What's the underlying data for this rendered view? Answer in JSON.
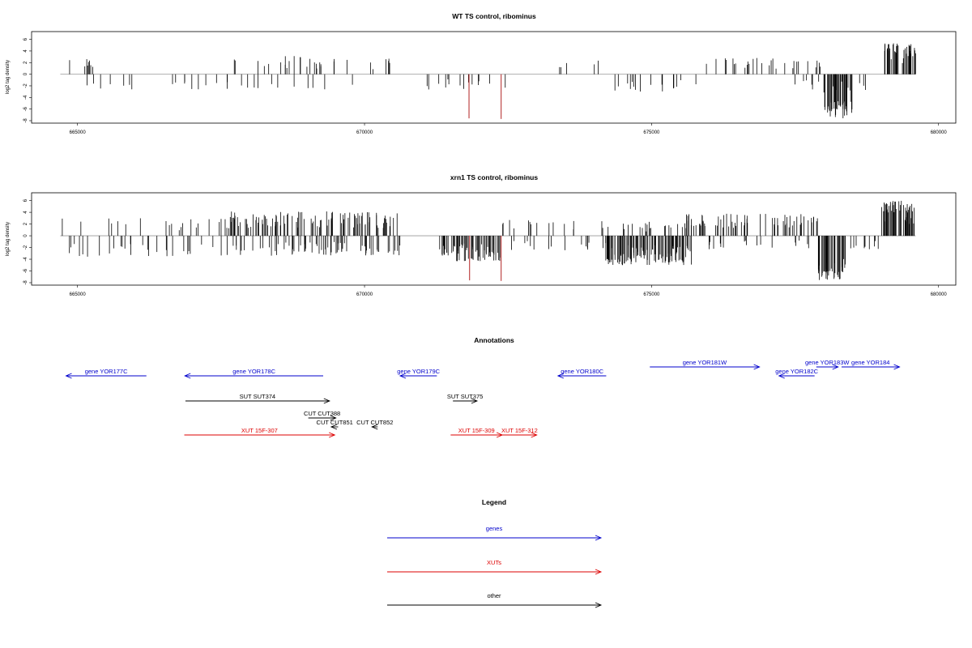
{
  "chart_data": [
    {
      "type": "bar",
      "title": "WT TS control, ribominus",
      "ylabel": "log2 tag density",
      "xlabel": "",
      "xlim": [
        664200,
        680300
      ],
      "ylim": [
        -8,
        7
      ],
      "yticks": [
        "6",
        "4",
        "2",
        "0",
        "-2",
        "-4",
        "-6",
        "-8"
      ],
      "xticks": [
        "665000",
        "670000",
        "675000",
        "680000"
      ],
      "bar_color": "#000000",
      "highlight_color": "#b22222",
      "highlight_bars": [
        {
          "x": 671820,
          "y": -7.6
        },
        {
          "x": 672380,
          "y": -7.7
        }
      ],
      "regions": [
        {
          "x_start": 664750,
          "x_end": 665400,
          "sign": 1,
          "max": 2.6,
          "density": 8
        },
        {
          "x_start": 664900,
          "x_end": 667300,
          "sign": -1,
          "max": 2.8,
          "density": 14
        },
        {
          "x_start": 667700,
          "x_end": 669900,
          "sign": 1,
          "max": 3.2,
          "density": 24
        },
        {
          "x_start": 667400,
          "x_end": 669800,
          "sign": -1,
          "max": 2.6,
          "density": 14
        },
        {
          "x_start": 669900,
          "x_end": 670700,
          "sign": 1,
          "max": 2.8,
          "density": 6
        },
        {
          "x_start": 670900,
          "x_end": 672500,
          "sign": -1,
          "max": 2.8,
          "density": 14
        },
        {
          "x_start": 673300,
          "x_end": 674300,
          "sign": 1,
          "max": 2.8,
          "density": 5
        },
        {
          "x_start": 674200,
          "x_end": 675900,
          "sign": -1,
          "max": 3.0,
          "density": 16
        },
        {
          "x_start": 675900,
          "x_end": 677200,
          "sign": 1,
          "max": 2.8,
          "density": 18
        },
        {
          "x_start": 677300,
          "x_end": 678100,
          "sign": 1,
          "max": 2.4,
          "density": 10
        },
        {
          "x_start": 677400,
          "x_end": 679000,
          "sign": -1,
          "max": 3.0,
          "density": 14
        },
        {
          "x_start": 678000,
          "x_end": 678500,
          "sign": -1,
          "max": 7.6,
          "density": 40
        },
        {
          "x_start": 679050,
          "x_end": 679600,
          "sign": 1,
          "max": 5.4,
          "density": 40
        }
      ]
    },
    {
      "type": "bar",
      "title": "xrn1 TS control, ribominus",
      "ylabel": "log2 tag density",
      "xlabel": "",
      "xlim": [
        664200,
        680300
      ],
      "ylim": [
        -8,
        7
      ],
      "yticks": [
        "6",
        "4",
        "2",
        "0",
        "-2",
        "-4",
        "-6",
        "-8"
      ],
      "xticks": [
        "665000",
        "670000",
        "675000",
        "680000"
      ],
      "bar_color": "#000000",
      "highlight_color": "#b22222",
      "highlight_bars": [
        {
          "x": 671830,
          "y": -7.6
        },
        {
          "x": 672380,
          "y": -7.7
        }
      ],
      "regions": [
        {
          "x_start": 664700,
          "x_end": 667600,
          "sign": 1,
          "max": 3.0,
          "density": 20
        },
        {
          "x_start": 664700,
          "x_end": 667600,
          "sign": -1,
          "max": 3.6,
          "density": 28
        },
        {
          "x_start": 667600,
          "x_end": 670700,
          "sign": 1,
          "max": 4.2,
          "density": 110
        },
        {
          "x_start": 667600,
          "x_end": 670700,
          "sign": -1,
          "max": 3.4,
          "density": 70
        },
        {
          "x_start": 671300,
          "x_end": 672400,
          "sign": -1,
          "max": 4.4,
          "density": 70
        },
        {
          "x_start": 672400,
          "x_end": 674300,
          "sign": 1,
          "max": 2.8,
          "density": 16
        },
        {
          "x_start": 672500,
          "x_end": 674300,
          "sign": -1,
          "max": 2.6,
          "density": 16
        },
        {
          "x_start": 674200,
          "x_end": 675700,
          "sign": -1,
          "max": 5.0,
          "density": 110
        },
        {
          "x_start": 674500,
          "x_end": 675700,
          "sign": 1,
          "max": 2.4,
          "density": 20
        },
        {
          "x_start": 675600,
          "x_end": 677900,
          "sign": 1,
          "max": 3.8,
          "density": 70
        },
        {
          "x_start": 676000,
          "x_end": 677800,
          "sign": -1,
          "max": 2.4,
          "density": 18
        },
        {
          "x_start": 677900,
          "x_end": 678400,
          "sign": -1,
          "max": 7.6,
          "density": 40
        },
        {
          "x_start": 678400,
          "x_end": 679000,
          "sign": -1,
          "max": 2.5,
          "density": 10
        },
        {
          "x_start": 679000,
          "x_end": 679600,
          "sign": 1,
          "max": 6.2,
          "density": 50
        }
      ]
    }
  ],
  "annotations": {
    "title": "Annotations",
    "xlim": [
      664200,
      680300
    ],
    "features": [
      {
        "label": "gene YOR177C",
        "x_start": 664800,
        "x_end": 666200,
        "strand": "-",
        "type": "gene",
        "row": 1
      },
      {
        "label": "gene YOR178C",
        "x_start": 666870,
        "x_end": 669280,
        "strand": "-",
        "type": "gene",
        "row": 1
      },
      {
        "label": "gene YOR179C",
        "x_start": 670620,
        "x_end": 671260,
        "strand": "-",
        "type": "gene",
        "row": 1
      },
      {
        "label": "gene YOR180C",
        "x_start": 673370,
        "x_end": 674210,
        "strand": "-",
        "type": "gene",
        "row": 1
      },
      {
        "label": "gene YOR181W",
        "x_start": 674970,
        "x_end": 676880,
        "strand": "+",
        "type": "gene",
        "row": 0
      },
      {
        "label": "gene YOR182C",
        "x_start": 677220,
        "x_end": 677840,
        "strand": "-",
        "type": "gene",
        "row": 1
      },
      {
        "label": "gene YOR183W",
        "x_start": 677870,
        "x_end": 678250,
        "strand": "+",
        "type": "gene",
        "row": 0
      },
      {
        "label": "gene YOR184",
        "x_start": 678310,
        "x_end": 679320,
        "strand": "+",
        "type": "gene",
        "row": 0
      },
      {
        "label": "SUT SUT374",
        "x_start": 666880,
        "x_end": 669390,
        "strand": "+",
        "type": "other",
        "row": 2
      },
      {
        "label": "SUT SUT375",
        "x_start": 671540,
        "x_end": 671960,
        "strand": "+",
        "type": "other",
        "row": 2
      },
      {
        "label": "CUT CUT388",
        "x_start": 669020,
        "x_end": 669500,
        "strand": "+",
        "type": "other",
        "row": 3
      },
      {
        "label": "CUT CUT851",
        "x_start": 669420,
        "x_end": 669540,
        "strand": "-",
        "type": "other",
        "row": 4
      },
      {
        "label": "CUT CUT852",
        "x_start": 670130,
        "x_end": 670230,
        "strand": "-",
        "type": "other",
        "row": 4
      },
      {
        "label": "XUT 15F-307",
        "x_start": 666860,
        "x_end": 669480,
        "strand": "+",
        "type": "xut",
        "row": 5
      },
      {
        "label": "XUT 15F-309",
        "x_start": 671500,
        "x_end": 672400,
        "strand": "+",
        "type": "xut",
        "row": 5
      },
      {
        "label": "XUT 15F-312",
        "x_start": 672400,
        "x_end": 673000,
        "strand": "+",
        "type": "xut",
        "row": 5
      }
    ]
  },
  "legend": {
    "title": "Legend",
    "items": [
      {
        "label": "genes",
        "color": "#0000cc"
      },
      {
        "label": "XUTs",
        "color": "#dd0000"
      },
      {
        "label": "other",
        "color": "#000000"
      }
    ]
  },
  "colors": {
    "gene": "#0000cc",
    "xut": "#dd0000",
    "other": "#000000",
    "baseline": "#999999"
  }
}
